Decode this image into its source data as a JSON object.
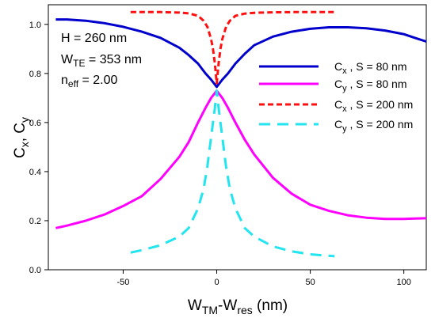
{
  "chart_data": {
    "type": "line",
    "xlabel": {
      "main": "W",
      "sub1": "TM",
      "mid": "-W",
      "sub2": "res",
      "tail": " (nm)"
    },
    "ylabel": {
      "a": "C",
      "a_sub": "x",
      "sep": ", ",
      "b": "C",
      "b_sub": "y"
    },
    "xlim": [
      -90,
      112
    ],
    "ylim": [
      0.0,
      1.08
    ],
    "xticks": [
      -50,
      0,
      50,
      100
    ],
    "yticks": [
      0.0,
      0.2,
      0.4,
      0.6,
      0.8,
      1.0
    ],
    "xtick_labels": [
      "-50",
      "0",
      "50",
      "100"
    ],
    "ytick_labels": [
      "0.0",
      "0.2",
      "0.4",
      "0.6",
      "0.8",
      "1.0"
    ],
    "annotations": [
      {
        "main": "H = 260 nm",
        "sub": "",
        "tail": ""
      },
      {
        "main": "W",
        "sub": "TE",
        "tail": " = 353 nm"
      },
      {
        "main": "n",
        "sub": "eff",
        "tail": " = 2.00"
      }
    ],
    "legend_position": "right",
    "series": [
      {
        "name": {
          "main": "C",
          "sub": "x",
          "tail": " , S = 80 nm"
        },
        "color": "#0000cc",
        "dash": "solid",
        "x": [
          -86,
          -80,
          -70,
          -60,
          -50,
          -40,
          -30,
          -20,
          -15,
          -10,
          -6,
          -3,
          0,
          3,
          6,
          10,
          15,
          20,
          30,
          40,
          50,
          60,
          70,
          80,
          90,
          100,
          106,
          112
        ],
        "y": [
          1.02,
          1.02,
          1.015,
          1.005,
          0.99,
          0.97,
          0.945,
          0.905,
          0.875,
          0.84,
          0.8,
          0.775,
          0.745,
          0.775,
          0.8,
          0.84,
          0.88,
          0.915,
          0.95,
          0.97,
          0.982,
          0.988,
          0.988,
          0.984,
          0.975,
          0.96,
          0.945,
          0.93
        ]
      },
      {
        "name": {
          "main": "C",
          "sub": "y",
          "tail": " , S = 80 nm"
        },
        "color": "#ff00ff",
        "dash": "solid",
        "x": [
          -86,
          -80,
          -70,
          -60,
          -50,
          -40,
          -30,
          -20,
          -15,
          -10,
          -6,
          -3,
          0,
          3,
          6,
          10,
          15,
          20,
          30,
          40,
          50,
          60,
          70,
          80,
          90,
          100,
          106,
          112
        ],
        "y": [
          0.17,
          0.18,
          0.2,
          0.225,
          0.26,
          0.3,
          0.37,
          0.46,
          0.52,
          0.6,
          0.66,
          0.7,
          0.73,
          0.7,
          0.66,
          0.6,
          0.53,
          0.47,
          0.375,
          0.31,
          0.265,
          0.24,
          0.222,
          0.212,
          0.207,
          0.207,
          0.209,
          0.21
        ]
      },
      {
        "name": {
          "main": "C",
          "sub": "x",
          "tail": " , S = 200 nm"
        },
        "color": "#ff1010",
        "dash": "dashed-short",
        "x": [
          -46,
          -40,
          -30,
          -20,
          -15,
          -10,
          -7,
          -5,
          -3,
          -2,
          -1,
          0,
          1,
          2,
          3,
          5,
          7,
          10,
          15,
          20,
          30,
          40,
          50,
          63
        ],
        "y": [
          1.05,
          1.05,
          1.05,
          1.048,
          1.045,
          1.035,
          1.015,
          0.99,
          0.94,
          0.9,
          0.84,
          0.76,
          0.84,
          0.9,
          0.94,
          0.99,
          1.015,
          1.035,
          1.044,
          1.047,
          1.049,
          1.05,
          1.05,
          1.05
        ]
      },
      {
        "name": {
          "main": "C",
          "sub": "y",
          "tail": " , S = 200 nm"
        },
        "color": "#22e5f0",
        "dash": "dashed-long",
        "x": [
          -46,
          -40,
          -30,
          -20,
          -15,
          -10,
          -7,
          -5,
          -3,
          -2,
          -1,
          0,
          1,
          2,
          3,
          5,
          7,
          10,
          15,
          20,
          30,
          40,
          50,
          63
        ],
        "y": [
          0.07,
          0.08,
          0.1,
          0.135,
          0.17,
          0.25,
          0.33,
          0.42,
          0.54,
          0.6,
          0.66,
          0.73,
          0.66,
          0.6,
          0.54,
          0.42,
          0.33,
          0.25,
          0.17,
          0.135,
          0.095,
          0.075,
          0.063,
          0.055
        ]
      }
    ]
  }
}
